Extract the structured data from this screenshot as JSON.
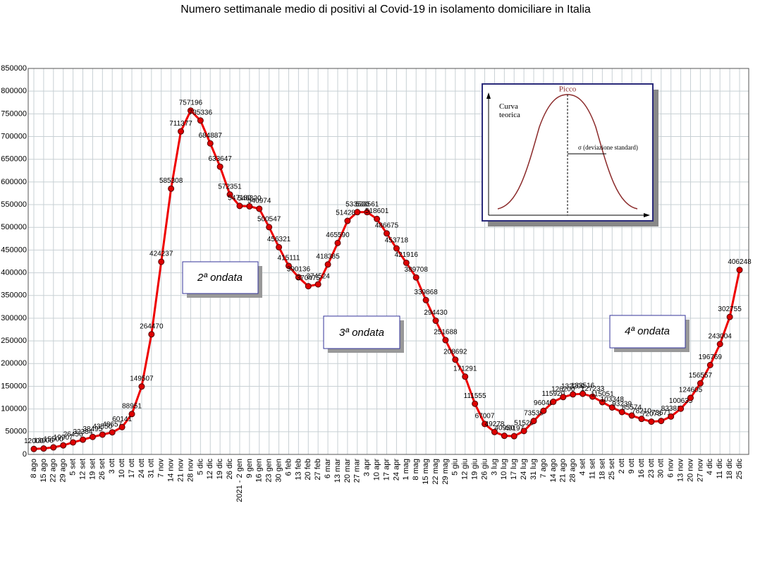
{
  "chart_data": {
    "type": "line",
    "title": "Numero settimanale medio di positivi al Covid-19  in isolamento domiciliare in Italia",
    "categories": [
      "8 ago",
      "15 ago",
      "22 ago",
      "29 ago",
      "5 set",
      "12 set",
      "19 set",
      "26 set",
      "3 ott",
      "10 ott",
      "17 ott",
      "24 ott",
      "31 ott",
      "7 nov",
      "14 nov",
      "21 nov",
      "28 nov",
      "5 dic",
      "12 dic",
      "19 dic",
      "26 dic",
      "2021 - 2 gen",
      "9 gen",
      "16 gen",
      "23 gen",
      "30 gen",
      "6 feb",
      "13 feb",
      "20 feb",
      "27 feb",
      "6 mar",
      "13 mar",
      "20 mar",
      "27 mar",
      "3 apr",
      "10 apr",
      "17 apr",
      "24 apr",
      "1 mag",
      "8 mag",
      "15 mag",
      "22 mag",
      "29 mag",
      "5 giu",
      "12 giu",
      "19 giu",
      "26 giu",
      "3 lug",
      "10 lug",
      "17 lug",
      "24 lug",
      "31 lug",
      "7 ago",
      "14 ago",
      "21 ago",
      "28 ago",
      "4 set",
      "11 set",
      "18 set",
      "25 set",
      "2 ott",
      "9 ott",
      "16 ott",
      "23 ott",
      "30 ott",
      "6 nov",
      "13 nov",
      "20 nov",
      "27 nov",
      "4 dic",
      "11 dic",
      "18 dic",
      "25 dic"
    ],
    "series": [
      {
        "color": "#ee0000",
        "values": [
          12000,
          13000,
          15500,
          19907,
          26456,
          32384,
          38495,
          43550,
          48657,
          60141,
          88951,
          149507,
          264470,
          424237,
          585308,
          711377,
          757196,
          735336,
          684887,
          633647,
          572351,
          547180,
          546320,
          540974,
          500547,
          456321,
          415111,
          390136,
          370475,
          374524,
          418385,
          465590,
          514286,
          533530,
          533561,
          518601,
          486675,
          453718,
          421916,
          389708,
          339868,
          294430,
          251688,
          208692,
          171291,
          111555,
          67007,
          49278,
          40950,
          40197,
          51520,
          73539,
          96040,
          115920,
          126200,
          132200,
          133516,
          127233,
          115051,
          103348,
          93239,
          85574,
          78210,
          72073,
          73671,
          83381,
          100635,
          124605,
          156557,
          196769,
          243004,
          302755,
          406248
        ]
      }
    ],
    "ylim": [
      0,
      850000
    ],
    "yticks": [
      0,
      50000,
      100000,
      150000,
      200000,
      250000,
      300000,
      350000,
      400000,
      450000,
      500000,
      550000,
      600000,
      650000,
      700000,
      750000,
      800000,
      850000
    ],
    "grid": true,
    "annotations": [
      "2ª ondata",
      "3ª ondata",
      "4ª ondata"
    ],
    "inset": {
      "title": "Picco",
      "curve_label": "Curva teorica",
      "sigma_label": "σ  (deviazione standard)"
    }
  }
}
